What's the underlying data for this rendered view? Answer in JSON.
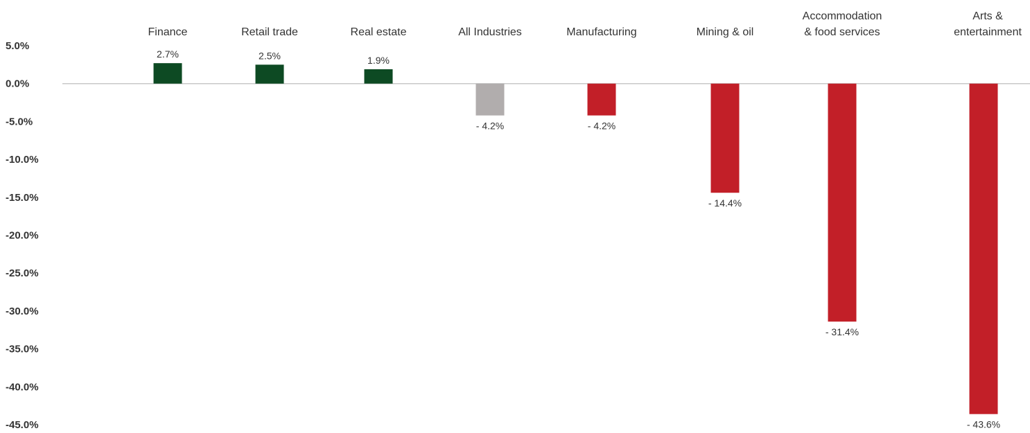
{
  "chart_data": {
    "type": "bar",
    "categories": [
      [
        "Finance"
      ],
      [
        "Retail trade"
      ],
      [
        "Real estate"
      ],
      [
        "All Industries"
      ],
      [
        "Manufacturing"
      ],
      [
        "Mining & oil"
      ],
      [
        "Accommodation",
        "& food services"
      ],
      [
        "Arts &",
        "entertainment"
      ]
    ],
    "values": [
      2.7,
      2.5,
      1.9,
      -4.2,
      -4.2,
      -14.4,
      -31.4,
      -43.6
    ],
    "data_labels": [
      "2.7%",
      "2.5%",
      "1.9%",
      "- 4.2%",
      "- 4.2%",
      "- 14.4%",
      "- 31.4%",
      "- 43.6%"
    ],
    "y_tick_labels": [
      "5.0%",
      "0.0%",
      "-5.0%",
      "-10.0%",
      "-15.0%",
      "-20.0%",
      "-25.0%",
      "-30.0%",
      "-35.0%",
      "-40.0%",
      "-45.0%"
    ],
    "y_ticks": [
      5,
      0,
      -5,
      -10,
      -15,
      -20,
      -25,
      -30,
      -35,
      -40,
      -45
    ],
    "ylim": [
      -45,
      5
    ],
    "grid": false,
    "bar_colors": [
      "#0d4a23",
      "#0d4a23",
      "#0d4a23",
      "#b1adad",
      "#c21f28",
      "#c21f28",
      "#c21f28",
      "#c21f28"
    ],
    "axis_color": "#c8c8c8",
    "text_color": "#333333"
  }
}
